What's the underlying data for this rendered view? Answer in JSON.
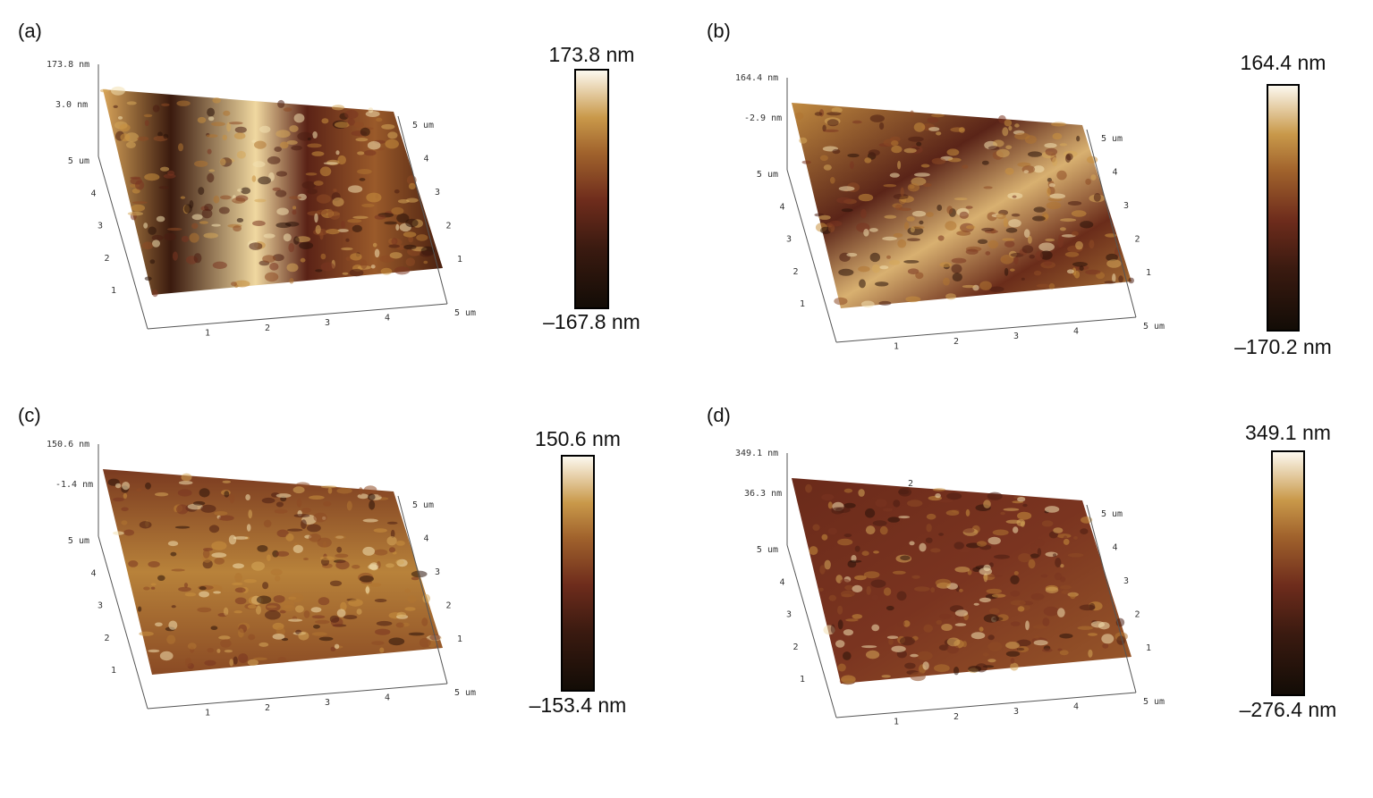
{
  "panels": [
    {
      "label": "(a)",
      "z_top": "173.8 nm",
      "z_mid": "3.0 nm",
      "scale_max": "173.8 nm",
      "scale_min": "–167.8 nm",
      "left_ticks": [
        "5 um",
        "4",
        "3",
        "2",
        "1"
      ],
      "bottom_ticks": [
        "1",
        "2",
        "3",
        "4",
        "5 um"
      ],
      "right_ticks": [
        "5 um",
        "4",
        "3",
        "2",
        "1"
      ]
    },
    {
      "label": "(b)",
      "z_top": "164.4 nm",
      "z_mid": "-2.9 nm",
      "scale_max": "164.4 nm",
      "scale_min": "–170.2 nm",
      "left_ticks": [
        "5 um",
        "4",
        "3",
        "2",
        "1"
      ],
      "bottom_ticks": [
        "1",
        "2",
        "3",
        "4",
        "5 um"
      ],
      "right_ticks": [
        "5 um",
        "4",
        "3",
        "2",
        "1"
      ]
    },
    {
      "label": "(c)",
      "z_top": "150.6 nm",
      "z_mid": "-1.4 nm",
      "scale_max": "150.6 nm",
      "scale_min": "–153.4 nm",
      "left_ticks": [
        "5 um",
        "4",
        "3",
        "2",
        "1"
      ],
      "bottom_ticks": [
        "1",
        "2",
        "3",
        "4",
        "5 um"
      ],
      "right_ticks": [
        "5 um",
        "4",
        "3",
        "2",
        "1"
      ]
    },
    {
      "label": "(d)",
      "z_top": "349.1 nm",
      "z_mid": "36.3 nm",
      "scale_max": "349.1 nm",
      "scale_min": "–276.4 nm",
      "left_ticks": [
        "5 um",
        "4",
        "3",
        "2",
        "1"
      ],
      "bottom_ticks": [
        "1",
        "2",
        "3",
        "4",
        "5 um"
      ],
      "right_ticks": [
        "5 um",
        "4",
        "3",
        "2",
        "1"
      ],
      "surface_tick": "2"
    }
  ]
}
